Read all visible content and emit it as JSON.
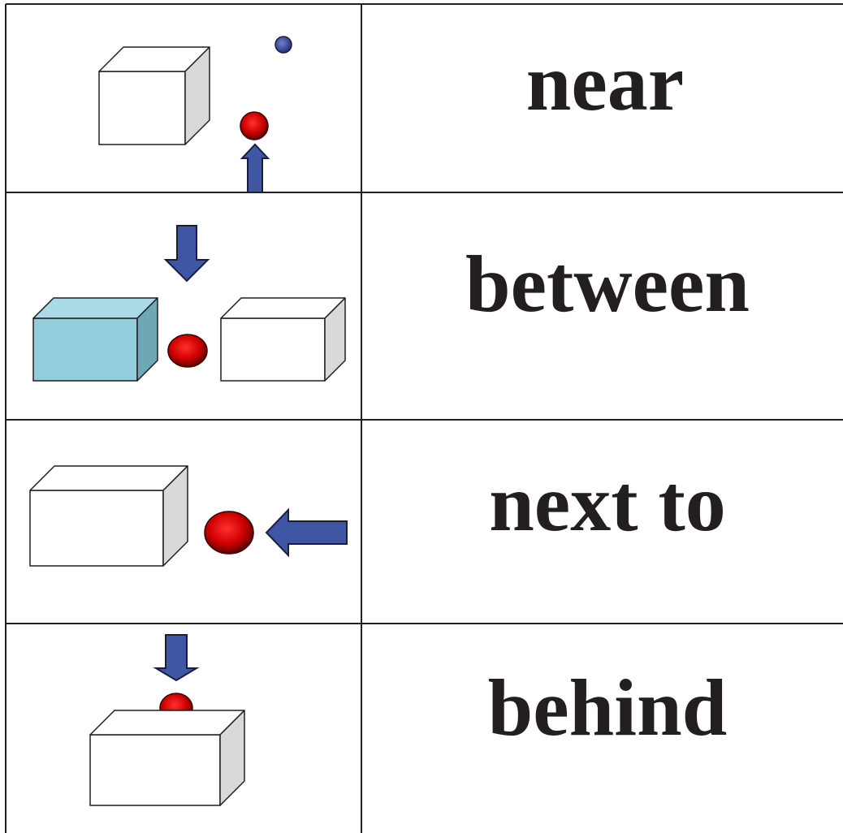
{
  "table": {
    "rows": [
      {
        "word": "near"
      },
      {
        "word": "between"
      },
      {
        "word": "next to"
      },
      {
        "word": "behind"
      }
    ]
  }
}
